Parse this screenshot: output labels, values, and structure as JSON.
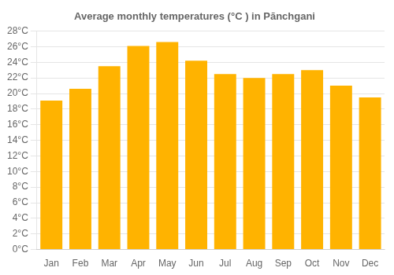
{
  "chart_data": {
    "type": "bar",
    "title": "Average monthly temperatures (°C ) in Pānchgani",
    "categories": [
      "Jan",
      "Feb",
      "Mar",
      "Apr",
      "May",
      "Jun",
      "Jul",
      "Aug",
      "Sep",
      "Oct",
      "Nov",
      "Dec"
    ],
    "values": [
      19.1,
      20.6,
      23.5,
      26.1,
      26.6,
      24.2,
      22.5,
      22.0,
      22.5,
      23.0,
      21.0,
      19.5
    ],
    "color": "#FFB300",
    "ylim": [
      0,
      28
    ],
    "yticks": [
      {
        "value": 0,
        "label": "0°C"
      },
      {
        "value": 2,
        "label": "2°C"
      },
      {
        "value": 4,
        "label": "4°C"
      },
      {
        "value": 6,
        "label": "6°C"
      },
      {
        "value": 8,
        "label": "8°C"
      },
      {
        "value": 10,
        "label": "10°C"
      },
      {
        "value": 12,
        "label": "12°C"
      },
      {
        "value": 14,
        "label": "14°C"
      },
      {
        "value": 16,
        "label": "16°C"
      },
      {
        "value": 18,
        "label": "18°C"
      },
      {
        "value": 20,
        "label": "20°C"
      },
      {
        "value": 22,
        "label": "22°C"
      },
      {
        "value": 24,
        "label": "24°C"
      },
      {
        "value": 26,
        "label": "26°C"
      },
      {
        "value": 28,
        "label": "28°C"
      }
    ],
    "grid": true
  }
}
